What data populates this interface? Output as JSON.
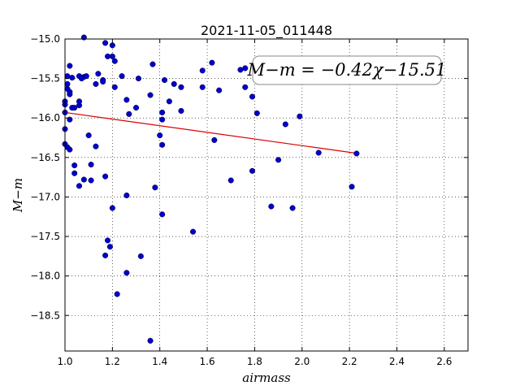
{
  "chart_data": {
    "type": "scatter",
    "title": "2021-11-05_011448",
    "xlabel": "airmass",
    "ylabel": "M−m",
    "xlim": [
      1.0,
      2.7
    ],
    "ylim": [
      -15.0,
      -18.95
    ],
    "y_inverted": true,
    "grid": true,
    "x_ticks": [
      "1.0",
      "1.2",
      "1.4",
      "1.6",
      "1.8",
      "2.0",
      "2.2",
      "2.4",
      "2.6"
    ],
    "y_ticks": [
      "−15.0",
      "−15.5",
      "−16.0",
      "−16.5",
      "−17.0",
      "−17.5",
      "−18.0",
      "−18.5"
    ],
    "annotation": "M−m = −0.42χ−15.51",
    "colors": {
      "points": "#0000cc",
      "fit": "#dd0000"
    },
    "fit": {
      "slope": -0.42,
      "intercept": -15.51,
      "x_range": [
        1.0,
        2.23
      ]
    },
    "points": [
      [
        1.08,
        -14.98
      ],
      [
        1.17,
        -15.05
      ],
      [
        1.2,
        -15.08
      ],
      [
        1.18,
        -15.22
      ],
      [
        1.2,
        -15.22
      ],
      [
        1.21,
        -15.28
      ],
      [
        1.02,
        -15.34
      ],
      [
        1.01,
        -15.47
      ],
      [
        1.03,
        -15.49
      ],
      [
        1.06,
        -15.47
      ],
      [
        1.08,
        -15.48
      ],
      [
        1.07,
        -15.5
      ],
      [
        1.09,
        -15.47
      ],
      [
        1.14,
        -15.44
      ],
      [
        1.16,
        -15.52
      ],
      [
        1.16,
        -15.54
      ],
      [
        1.13,
        -15.57
      ],
      [
        1.01,
        -15.57
      ],
      [
        1.01,
        -15.63
      ],
      [
        1.02,
        -15.67
      ],
      [
        1.02,
        -15.7
      ],
      [
        1.0,
        -15.79
      ],
      [
        1.0,
        -15.83
      ],
      [
        1.06,
        -15.79
      ],
      [
        1.06,
        -15.84
      ],
      [
        1.03,
        -15.87
      ],
      [
        1.04,
        -15.87
      ],
      [
        1.0,
        -15.93
      ],
      [
        1.02,
        -16.02
      ],
      [
        1.0,
        -16.14
      ],
      [
        1.1,
        -16.22
      ],
      [
        1.13,
        -16.36
      ],
      [
        1.0,
        -16.33
      ],
      [
        1.01,
        -16.37
      ],
      [
        1.02,
        -16.4
      ],
      [
        1.04,
        -16.6
      ],
      [
        1.04,
        -16.7
      ],
      [
        1.06,
        -16.86
      ],
      [
        1.08,
        -16.78
      ],
      [
        1.11,
        -16.79
      ],
      [
        1.11,
        -16.59
      ],
      [
        1.17,
        -16.74
      ],
      [
        1.24,
        -15.47
      ],
      [
        1.21,
        -15.61
      ],
      [
        1.26,
        -15.77
      ],
      [
        1.27,
        -15.95
      ],
      [
        1.3,
        -15.87
      ],
      [
        1.31,
        -15.5
      ],
      [
        1.36,
        -15.71
      ],
      [
        1.37,
        -15.32
      ],
      [
        1.41,
        -15.93
      ],
      [
        1.41,
        -16.02
      ],
      [
        1.4,
        -16.22
      ],
      [
        1.41,
        -16.34
      ],
      [
        1.42,
        -15.52
      ],
      [
        1.44,
        -15.79
      ],
      [
        1.46,
        -15.57
      ],
      [
        1.49,
        -15.61
      ],
      [
        1.49,
        -15.91
      ],
      [
        1.26,
        -16.98
      ],
      [
        1.38,
        -16.88
      ],
      [
        1.2,
        -17.14
      ],
      [
        1.41,
        -17.22
      ],
      [
        1.54,
        -17.44
      ],
      [
        1.58,
        -15.4
      ],
      [
        1.58,
        -15.61
      ],
      [
        1.62,
        -15.3
      ],
      [
        1.65,
        -15.65
      ],
      [
        1.63,
        -16.28
      ],
      [
        1.74,
        -15.39
      ],
      [
        1.76,
        -15.37
      ],
      [
        1.76,
        -15.61
      ],
      [
        1.79,
        -15.73
      ],
      [
        1.81,
        -15.94
      ],
      [
        1.79,
        -16.67
      ],
      [
        1.7,
        -16.79
      ],
      [
        1.87,
        -17.12
      ],
      [
        1.9,
        -16.53
      ],
      [
        1.93,
        -16.08
      ],
      [
        1.96,
        -17.14
      ],
      [
        1.99,
        -15.98
      ],
      [
        2.07,
        -16.44
      ],
      [
        2.21,
        -16.87
      ],
      [
        2.23,
        -16.45
      ],
      [
        1.18,
        -17.55
      ],
      [
        1.19,
        -17.63
      ],
      [
        1.17,
        -17.74
      ],
      [
        1.32,
        -17.75
      ],
      [
        1.26,
        -17.96
      ],
      [
        1.22,
        -18.23
      ],
      [
        1.36,
        -18.82
      ]
    ]
  }
}
